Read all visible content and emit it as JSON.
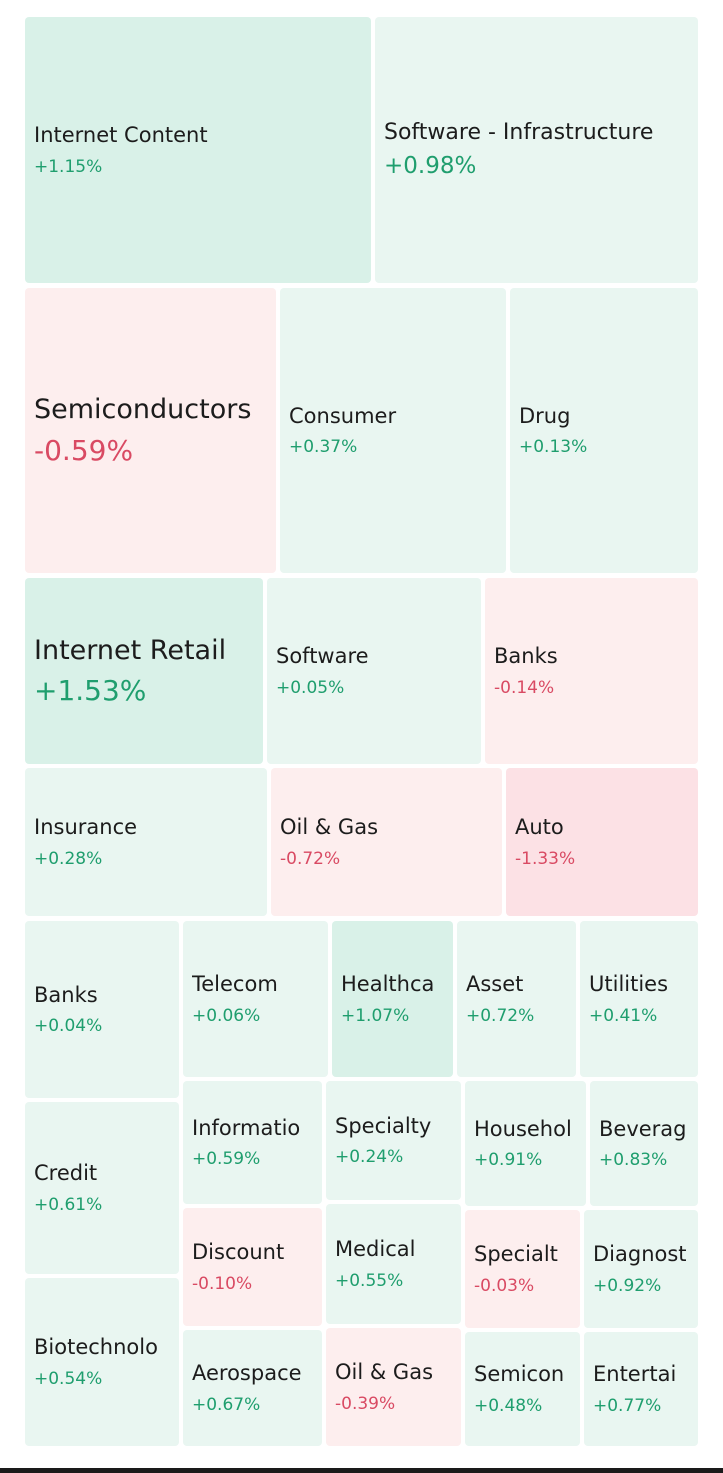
{
  "tiles": [
    {
      "name": "Internet Content",
      "change": "+1.15%",
      "dir": "up"
    },
    {
      "name": "Software - Infrastructure",
      "change": "+0.98%",
      "dir": "up"
    },
    {
      "name": "Semiconductors",
      "change": "-0.59%",
      "dir": "down"
    },
    {
      "name": "Consumer",
      "change": "+0.37%",
      "dir": "up"
    },
    {
      "name": "Drug",
      "change": "+0.13%",
      "dir": "up"
    },
    {
      "name": "Internet Retail",
      "change": "+1.53%",
      "dir": "up"
    },
    {
      "name": "Software",
      "change": "+0.05%",
      "dir": "up"
    },
    {
      "name": "Banks",
      "change": "-0.14%",
      "dir": "down"
    },
    {
      "name": "Insurance",
      "change": "+0.28%",
      "dir": "up"
    },
    {
      "name": "Oil & Gas",
      "change": "-0.72%",
      "dir": "down"
    },
    {
      "name": "Auto",
      "change": "-1.33%",
      "dir": "down"
    },
    {
      "name": "Banks",
      "change": "+0.04%",
      "dir": "up"
    },
    {
      "name": "Telecom",
      "change": "+0.06%",
      "dir": "up"
    },
    {
      "name": "Healthca",
      "change": "+1.07%",
      "dir": "up"
    },
    {
      "name": "Asset",
      "change": "+0.72%",
      "dir": "up"
    },
    {
      "name": "Utilities",
      "change": "+0.41%",
      "dir": "up"
    },
    {
      "name": "Credit",
      "change": "+0.61%",
      "dir": "up"
    },
    {
      "name": "Informatio",
      "change": "+0.59%",
      "dir": "up"
    },
    {
      "name": "Specialty",
      "change": "+0.24%",
      "dir": "up"
    },
    {
      "name": "Househol",
      "change": "+0.91%",
      "dir": "up"
    },
    {
      "name": "Beverag",
      "change": "+0.83%",
      "dir": "up"
    },
    {
      "name": "Discount",
      "change": "-0.10%",
      "dir": "down"
    },
    {
      "name": "Medical",
      "change": "+0.55%",
      "dir": "up"
    },
    {
      "name": "Specialt",
      "change": "-0.03%",
      "dir": "down"
    },
    {
      "name": "Diagnost",
      "change": "+0.92%",
      "dir": "up"
    },
    {
      "name": "Biotechnolo",
      "change": "+0.54%",
      "dir": "up"
    },
    {
      "name": "Aerospace",
      "change": "+0.67%",
      "dir": "up"
    },
    {
      "name": "Oil & Gas",
      "change": "-0.39%",
      "dir": "down"
    },
    {
      "name": "Semicon",
      "change": "+0.48%",
      "dir": "up"
    },
    {
      "name": "Entertai",
      "change": "+0.77%",
      "dir": "up"
    }
  ]
}
